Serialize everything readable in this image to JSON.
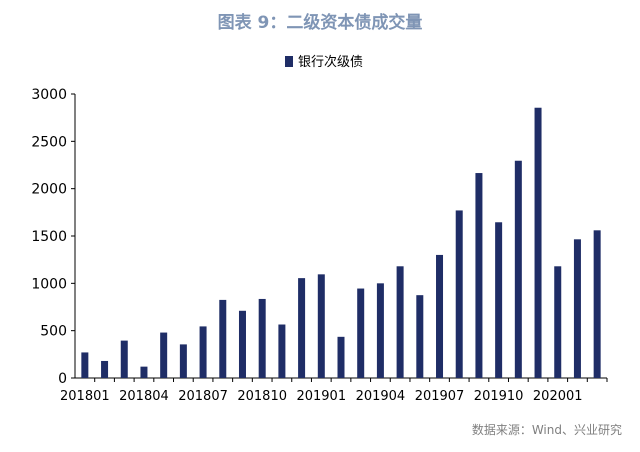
{
  "header": {
    "title": "图表 9：二级资本债成交量"
  },
  "footer": {
    "source": "数据来源：Wind、兴业研究"
  },
  "colors": {
    "bar": "#1f2d66",
    "title": "#7f95b5",
    "axis": "#000000"
  },
  "chart_data": {
    "type": "bar",
    "title": "图表 9：二级资本债成交量",
    "legend_position": "top-center",
    "grid": false,
    "ylim": [
      0,
      3000
    ],
    "yticks": [
      0,
      500,
      1000,
      1500,
      2000,
      2500,
      3000
    ],
    "xtick_labels": [
      "201801",
      "201804",
      "201807",
      "201810",
      "201901",
      "201904",
      "201907",
      "201910",
      "202001"
    ],
    "categories": [
      "201801",
      "201802",
      "201803",
      "201804",
      "201805",
      "201806",
      "201807",
      "201808",
      "201809",
      "201810",
      "201811",
      "201812",
      "201901",
      "201902",
      "201903",
      "201904",
      "201905",
      "201906",
      "201907",
      "201908",
      "201909",
      "201910",
      "201911",
      "201912",
      "202001",
      "202002",
      "202003"
    ],
    "series": [
      {
        "name": "银行次级债",
        "values": [
          270,
          180,
          395,
          120,
          480,
          355,
          545,
          825,
          710,
          835,
          565,
          1055,
          1095,
          435,
          945,
          1000,
          1180,
          875,
          1300,
          1770,
          2165,
          1645,
          2295,
          2855,
          1180,
          1465,
          1560
        ]
      }
    ]
  }
}
